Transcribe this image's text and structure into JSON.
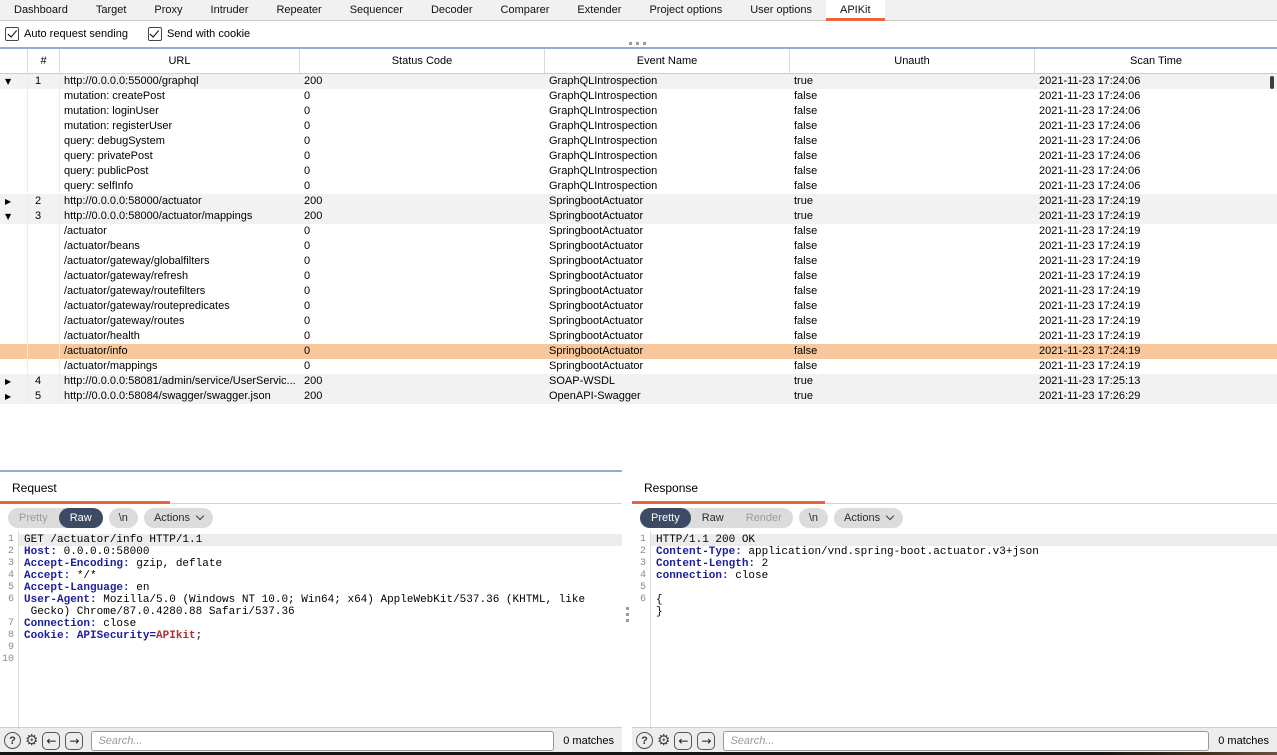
{
  "colors": {
    "accent_orange": "#e8643a",
    "selected_row": "#f8c89c",
    "navy_button": "#3d4a63",
    "splitter_blue": "#90acd4",
    "syntax_header_blue": "#1c209e",
    "syntax_red": "#b42b2b"
  },
  "icons": {
    "help": "?",
    "gear": "⚙",
    "back": "←",
    "forward": "→",
    "expand_open": "▼",
    "expand_closed": "▶"
  },
  "topTabs": {
    "items": [
      "Dashboard",
      "Target",
      "Proxy",
      "Intruder",
      "Repeater",
      "Sequencer",
      "Decoder",
      "Comparer",
      "Extender",
      "Project options",
      "User options",
      "APIKit"
    ],
    "active": "APIKit"
  },
  "options": {
    "auto_request_label": "Auto request sending",
    "auto_request_checked": true,
    "send_cookie_label": "Send with cookie",
    "send_cookie_checked": true
  },
  "scanTable": {
    "columns": [
      "#",
      "URL",
      "Status Code",
      "Event Name",
      "Unauth",
      "Scan Time"
    ],
    "rows": [
      {
        "exp": "open",
        "num": "1",
        "url": "http://0.0.0.0:55000/graphql",
        "status": "200",
        "event": "GraphQLIntrospection",
        "unauth": "true",
        "time": "2021-11-23 17:24:06",
        "kind": "parent",
        "selected": false
      },
      {
        "exp": "",
        "num": "",
        "url": "mutation: createPost",
        "status": "0",
        "event": "GraphQLIntrospection",
        "unauth": "false",
        "time": "2021-11-23 17:24:06",
        "kind": "child",
        "selected": false
      },
      {
        "exp": "",
        "num": "",
        "url": "mutation: loginUser",
        "status": "0",
        "event": "GraphQLIntrospection",
        "unauth": "false",
        "time": "2021-11-23 17:24:06",
        "kind": "child",
        "selected": false
      },
      {
        "exp": "",
        "num": "",
        "url": "mutation: registerUser",
        "status": "0",
        "event": "GraphQLIntrospection",
        "unauth": "false",
        "time": "2021-11-23 17:24:06",
        "kind": "child",
        "selected": false
      },
      {
        "exp": "",
        "num": "",
        "url": "query: debugSystem",
        "status": "0",
        "event": "GraphQLIntrospection",
        "unauth": "false",
        "time": "2021-11-23 17:24:06",
        "kind": "child",
        "selected": false
      },
      {
        "exp": "",
        "num": "",
        "url": "query: privatePost",
        "status": "0",
        "event": "GraphQLIntrospection",
        "unauth": "false",
        "time": "2021-11-23 17:24:06",
        "kind": "child",
        "selected": false
      },
      {
        "exp": "",
        "num": "",
        "url": "query: publicPost",
        "status": "0",
        "event": "GraphQLIntrospection",
        "unauth": "false",
        "time": "2021-11-23 17:24:06",
        "kind": "child",
        "selected": false
      },
      {
        "exp": "",
        "num": "",
        "url": "query: selfInfo",
        "status": "0",
        "event": "GraphQLIntrospection",
        "unauth": "false",
        "time": "2021-11-23 17:24:06",
        "kind": "child",
        "selected": false
      },
      {
        "exp": "closed",
        "num": "2",
        "url": "http://0.0.0.0:58000/actuator",
        "status": "200",
        "event": "SpringbootActuator",
        "unauth": "true",
        "time": "2021-11-23 17:24:19",
        "kind": "parent",
        "selected": false
      },
      {
        "exp": "open",
        "num": "3",
        "url": "http://0.0.0.0:58000/actuator/mappings",
        "status": "200",
        "event": "SpringbootActuator",
        "unauth": "true",
        "time": "2021-11-23 17:24:19",
        "kind": "parent",
        "selected": false
      },
      {
        "exp": "",
        "num": "",
        "url": "/actuator",
        "status": "0",
        "event": "SpringbootActuator",
        "unauth": "false",
        "time": "2021-11-23 17:24:19",
        "kind": "child",
        "selected": false
      },
      {
        "exp": "",
        "num": "",
        "url": "/actuator/beans",
        "status": "0",
        "event": "SpringbootActuator",
        "unauth": "false",
        "time": "2021-11-23 17:24:19",
        "kind": "child",
        "selected": false
      },
      {
        "exp": "",
        "num": "",
        "url": "/actuator/gateway/globalfilters",
        "status": "0",
        "event": "SpringbootActuator",
        "unauth": "false",
        "time": "2021-11-23 17:24:19",
        "kind": "child",
        "selected": false
      },
      {
        "exp": "",
        "num": "",
        "url": "/actuator/gateway/refresh",
        "status": "0",
        "event": "SpringbootActuator",
        "unauth": "false",
        "time": "2021-11-23 17:24:19",
        "kind": "child",
        "selected": false
      },
      {
        "exp": "",
        "num": "",
        "url": "/actuator/gateway/routefilters",
        "status": "0",
        "event": "SpringbootActuator",
        "unauth": "false",
        "time": "2021-11-23 17:24:19",
        "kind": "child",
        "selected": false
      },
      {
        "exp": "",
        "num": "",
        "url": "/actuator/gateway/routepredicates",
        "status": "0",
        "event": "SpringbootActuator",
        "unauth": "false",
        "time": "2021-11-23 17:24:19",
        "kind": "child",
        "selected": false
      },
      {
        "exp": "",
        "num": "",
        "url": "/actuator/gateway/routes",
        "status": "0",
        "event": "SpringbootActuator",
        "unauth": "false",
        "time": "2021-11-23 17:24:19",
        "kind": "child",
        "selected": false
      },
      {
        "exp": "",
        "num": "",
        "url": "/actuator/health",
        "status": "0",
        "event": "SpringbootActuator",
        "unauth": "false",
        "time": "2021-11-23 17:24:19",
        "kind": "child",
        "selected": false
      },
      {
        "exp": "",
        "num": "",
        "url": "/actuator/info",
        "status": "0",
        "event": "SpringbootActuator",
        "unauth": "false",
        "time": "2021-11-23 17:24:19",
        "kind": "child",
        "selected": true
      },
      {
        "exp": "",
        "num": "",
        "url": "/actuator/mappings",
        "status": "0",
        "event": "SpringbootActuator",
        "unauth": "false",
        "time": "2021-11-23 17:24:19",
        "kind": "child",
        "selected": false
      },
      {
        "exp": "closed",
        "num": "4",
        "url": "http://0.0.0.0:58081/admin/service/UserServic...",
        "status": "200",
        "event": "SOAP-WSDL",
        "unauth": "true",
        "time": "2021-11-23 17:25:13",
        "kind": "parent",
        "selected": false
      },
      {
        "exp": "closed",
        "num": "5",
        "url": "http://0.0.0.0:58084/swagger/swagger.json",
        "status": "200",
        "event": "OpenAPI-Swagger",
        "unauth": "true",
        "time": "2021-11-23 17:26:29",
        "kind": "parent",
        "selected": false
      }
    ]
  },
  "request": {
    "title": "Request",
    "toolbar": {
      "segments": [
        {
          "label": "Pretty",
          "state": "disabled"
        },
        {
          "label": "Raw",
          "state": "selected"
        }
      ],
      "newline_label": "\\n",
      "actions_label": "Actions"
    },
    "lines": [
      {
        "num": "1",
        "hl": true,
        "segs": [
          [
            "p",
            "GET /actuator/info HTTP/1.1"
          ]
        ]
      },
      {
        "num": "2",
        "segs": [
          [
            "h",
            "Host:"
          ],
          [
            "p",
            " 0.0.0.0:58000"
          ]
        ]
      },
      {
        "num": "3",
        "segs": [
          [
            "h",
            "Accept-Encoding:"
          ],
          [
            "p",
            " gzip, deflate"
          ]
        ]
      },
      {
        "num": "4",
        "segs": [
          [
            "h",
            "Accept:"
          ],
          [
            "p",
            " */*"
          ]
        ]
      },
      {
        "num": "5",
        "segs": [
          [
            "h",
            "Accept-Language:"
          ],
          [
            "p",
            " en"
          ]
        ]
      },
      {
        "num": "6",
        "segs": [
          [
            "h",
            "User-Agent:"
          ],
          [
            "p",
            " Mozilla/5.0 (Windows NT 10.0; Win64; x64) AppleWebKit/537.36 (KHTML, like"
          ]
        ]
      },
      {
        "num": "",
        "segs": [
          [
            "p",
            " Gecko) Chrome/87.0.4280.88 Safari/537.36"
          ]
        ]
      },
      {
        "num": "7",
        "segs": [
          [
            "h",
            "Connection:"
          ],
          [
            "p",
            " close"
          ]
        ]
      },
      {
        "num": "8",
        "segs": [
          [
            "h",
            "Cookie:"
          ],
          [
            "p",
            " "
          ],
          [
            "h",
            "APISecurity="
          ],
          [
            "r",
            "APIkit"
          ],
          [
            "p",
            ";"
          ]
        ]
      },
      {
        "num": "9",
        "segs": []
      },
      {
        "num": "10",
        "segs": []
      }
    ],
    "search": {
      "placeholder": "Search...",
      "matches_label": "0 matches"
    }
  },
  "response": {
    "title": "Response",
    "toolbar": {
      "segments": [
        {
          "label": "Pretty",
          "state": "selected"
        },
        {
          "label": "Raw",
          "state": "normal"
        },
        {
          "label": "Render",
          "state": "disabled"
        }
      ],
      "newline_label": "\\n",
      "actions_label": "Actions"
    },
    "lines": [
      {
        "num": "1",
        "hl": true,
        "segs": [
          [
            "p",
            "HTTP/1.1 200 OK"
          ]
        ]
      },
      {
        "num": "2",
        "segs": [
          [
            "h",
            "Content-Type:"
          ],
          [
            "p",
            " application/vnd.spring-boot.actuator.v3+json"
          ]
        ]
      },
      {
        "num": "3",
        "segs": [
          [
            "h",
            "Content-Length:"
          ],
          [
            "p",
            " 2"
          ]
        ]
      },
      {
        "num": "4",
        "segs": [
          [
            "h",
            "connection:"
          ],
          [
            "p",
            " close"
          ]
        ]
      },
      {
        "num": "5",
        "segs": []
      },
      {
        "num": "6",
        "segs": [
          [
            "p",
            "{"
          ]
        ]
      },
      {
        "num": "",
        "segs": [
          [
            "p",
            "}"
          ]
        ]
      }
    ],
    "search": {
      "placeholder": "Search...",
      "matches_label": "0 matches"
    }
  }
}
